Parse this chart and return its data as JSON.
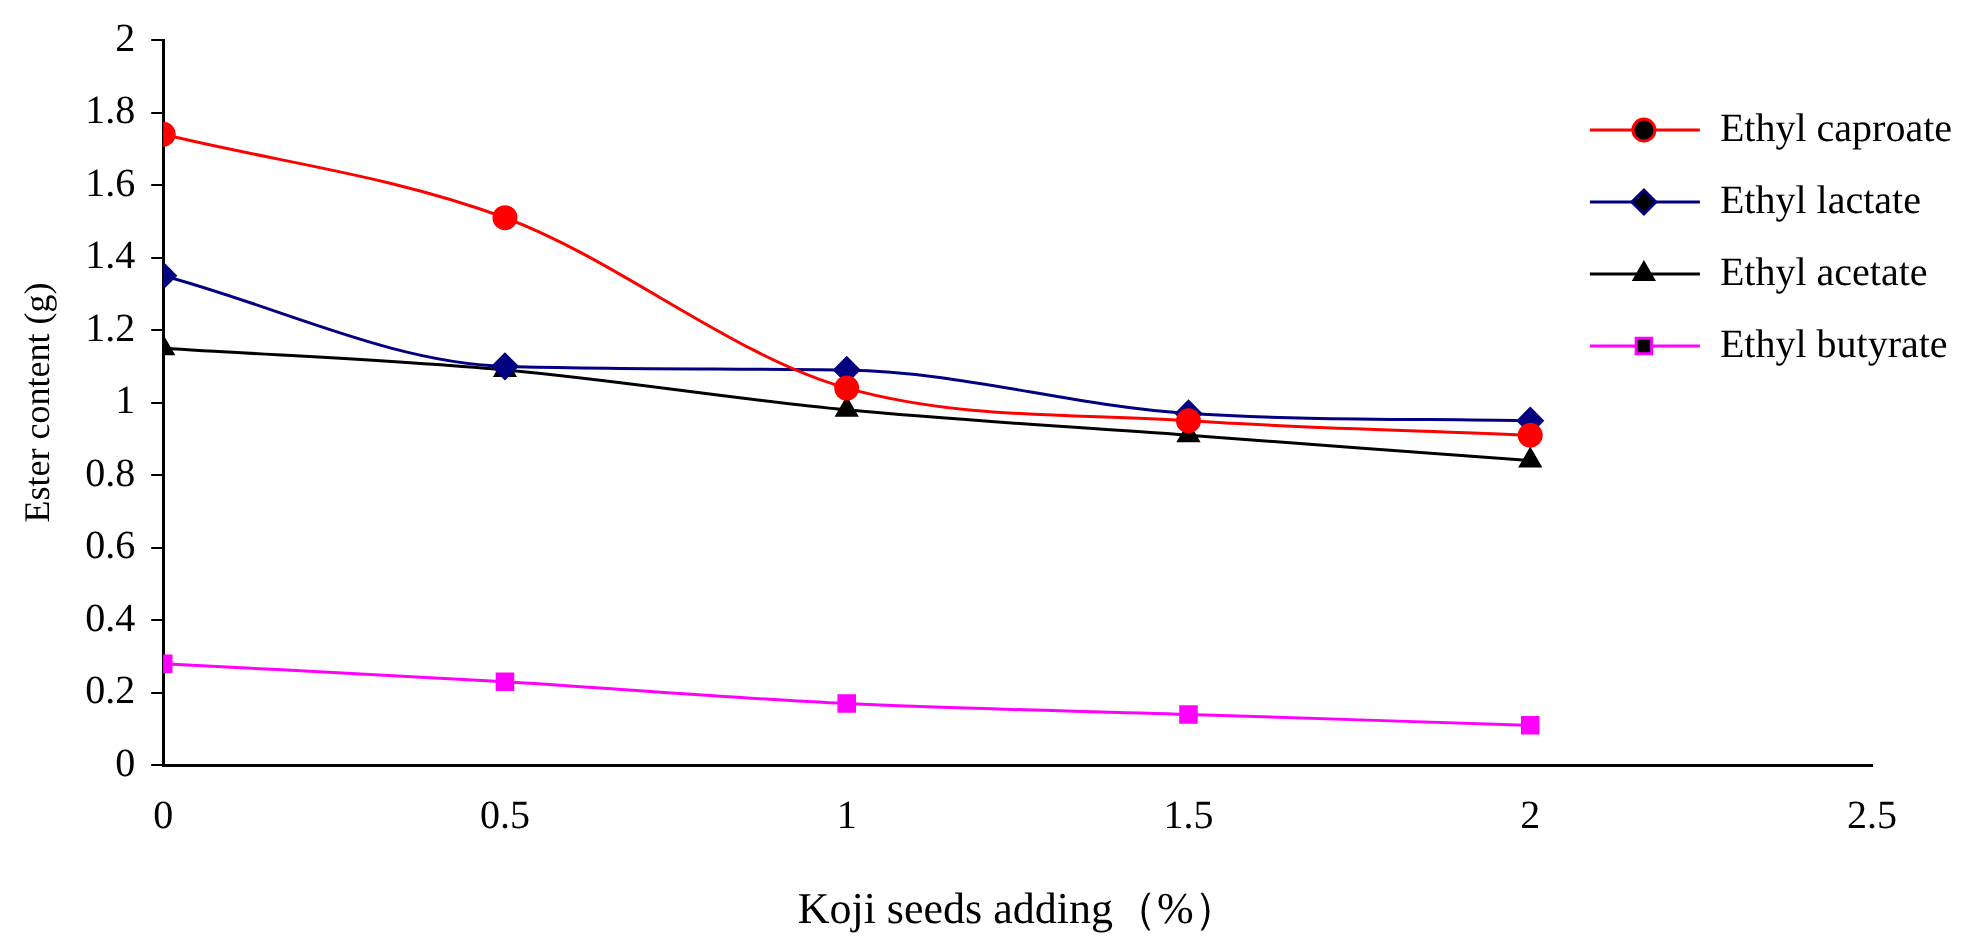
{
  "chart_data": {
    "type": "line",
    "xlabel": "Koji seeds adding（%）",
    "ylabel": "Ester content (g)",
    "x": [
      0,
      0.5,
      1,
      1.5,
      2
    ],
    "xlim": [
      0,
      2.5
    ],
    "xticks": [
      0,
      0.5,
      1,
      1.5,
      2,
      2.5
    ],
    "ylim": [
      0,
      2
    ],
    "yticks": [
      0,
      0.2,
      0.4,
      0.6,
      0.8,
      1,
      1.2,
      1.4,
      1.6,
      1.8,
      2
    ],
    "grid": false,
    "legend": "top right",
    "line_style": "solid",
    "series": [
      {
        "name": "Ethyl caproate",
        "color": "#ff0000",
        "marker": "circle",
        "values": [
          1.74,
          1.51,
          1.04,
          0.95,
          0.91
        ]
      },
      {
        "name": "Ethyl lactate",
        "color": "#000080",
        "marker": "diamond",
        "values": [
          1.35,
          1.1,
          1.09,
          0.97,
          0.95
        ]
      },
      {
        "name": "Ethyl acetate",
        "color": "#000000",
        "marker": "triangle",
        "values": [
          1.15,
          1.09,
          0.98,
          0.91,
          0.84
        ]
      },
      {
        "name": "Ethyl butyrate",
        "color": "#ff00ff",
        "marker": "square",
        "values": [
          0.28,
          0.23,
          0.17,
          0.14,
          0.11
        ]
      }
    ]
  }
}
